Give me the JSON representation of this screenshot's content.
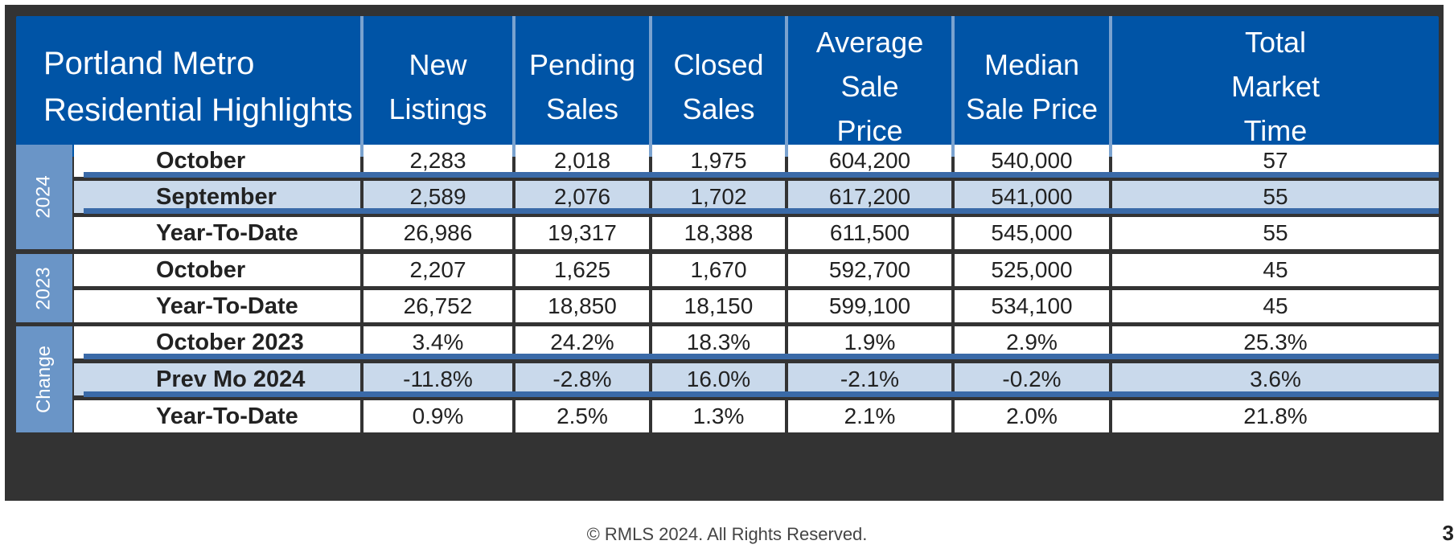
{
  "title": "Portland Metro\nResidential Highlights",
  "columns": [
    "New\nListings",
    "Pending\nSales",
    "Closed\nSales",
    "Average Sale\nPrice",
    "Median\nSale Price",
    "Total\nMarket\nTime"
  ],
  "groups": [
    {
      "label": "2024",
      "rows": [
        {
          "label": "October",
          "values": [
            "2,283",
            "2,018",
            "1,975",
            "604,200",
            "540,000",
            "57"
          ]
        },
        {
          "label": "September",
          "values": [
            "2,589",
            "2,076",
            "1,702",
            "617,200",
            "541,000",
            "55"
          ]
        },
        {
          "label": "Year-To-Date",
          "values": [
            "26,986",
            "19,317",
            "18,388",
            "611,500",
            "545,000",
            "55"
          ]
        }
      ]
    },
    {
      "label": "2023",
      "rows": [
        {
          "label": "October",
          "values": [
            "2,207",
            "1,625",
            "1,670",
            "592,700",
            "525,000",
            "45"
          ]
        },
        {
          "label": "Year-To-Date",
          "values": [
            "26,752",
            "18,850",
            "18,150",
            "599,100",
            "534,100",
            "45"
          ]
        }
      ]
    },
    {
      "label": "Change",
      "rows": [
        {
          "label": "October 2023",
          "values": [
            "3.4%",
            "24.2%",
            "18.3%",
            "1.9%",
            "2.9%",
            "25.3%"
          ]
        },
        {
          "label": "Prev Mo 2024",
          "values": [
            "-11.8%",
            "-2.8%",
            "16.0%",
            "-2.1%",
            "-0.2%",
            "3.6%"
          ]
        },
        {
          "label": "Year-To-Date",
          "values": [
            "0.9%",
            "2.5%",
            "1.3%",
            "2.1%",
            "2.0%",
            "21.8%"
          ]
        }
      ]
    }
  ],
  "footer": "© RMLS 2024. All Rights Reserved.",
  "page_number": "3"
}
